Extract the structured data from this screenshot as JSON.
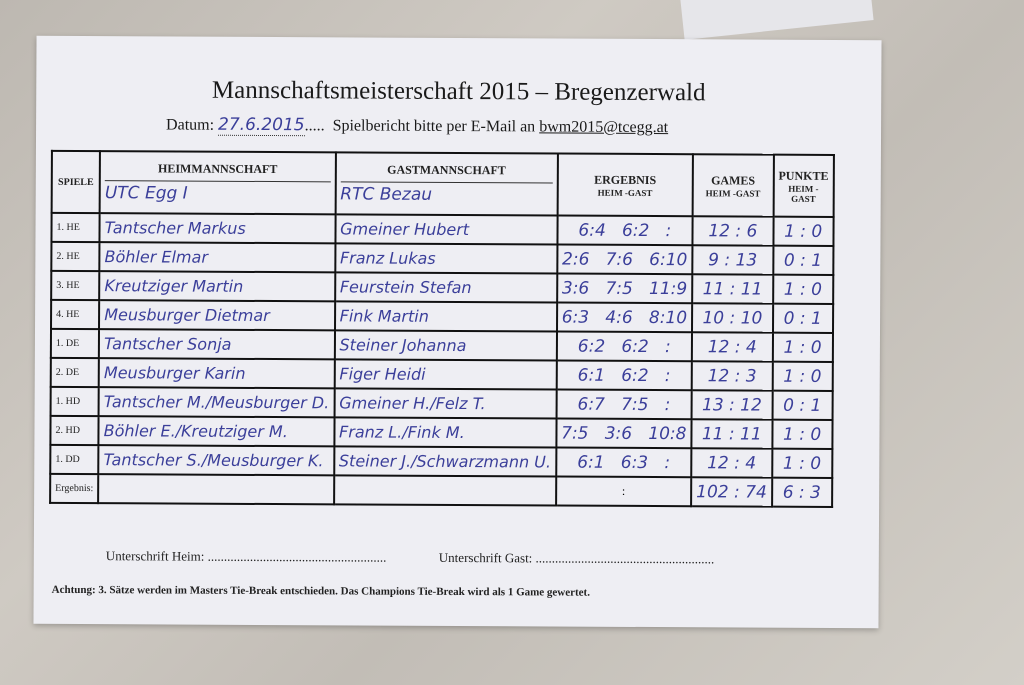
{
  "title": "Mannschaftsmeisterschaft 2015 – Bregenzerwald",
  "datum_label": "Datum:",
  "datum_value": "27.6.2015",
  "datum_dots": ".....",
  "email_text": "Spielbericht bitte per E-Mail an",
  "email": "bwm2015@tcegg.at",
  "headers": {
    "spiele": "SPIELE",
    "heim": "HEIMMANNSCHAFT",
    "gast": "GASTMANNSCHAFT",
    "ergebnis": "ERGEBNIS",
    "ergebnis_sub": "HEIM -GAST",
    "games": "GAMES",
    "games_sub": "HEIM -GAST",
    "punkte": "PUNKTE",
    "punkte_sub": "HEIM -GAST"
  },
  "home_team": "UTC Egg I",
  "guest_team": "RTC Bezau",
  "rows": [
    {
      "spiel": "1. HE",
      "heim": "Tantscher Markus",
      "gast": "Gmeiner Hubert",
      "ergebnis": "6:4   6:2   :",
      "games": "12 : 6",
      "punkte": "1 : 0"
    },
    {
      "spiel": "2. HE",
      "heim": "Böhler Elmar",
      "gast": "Franz Lukas",
      "ergebnis": "2:6   7:6   6:10",
      "games": "9 : 13",
      "punkte": "0 : 1"
    },
    {
      "spiel": "3. HE",
      "heim": "Kreutziger Martin",
      "gast": "Feurstein Stefan",
      "ergebnis": "3:6   7:5   11:9",
      "games": "11 : 11",
      "punkte": "1 : 0"
    },
    {
      "spiel": "4. HE",
      "heim": "Meusburger Dietmar",
      "gast": "Fink Martin",
      "ergebnis": "6:3   4:6   8:10",
      "games": "10 : 10",
      "punkte": "0 : 1"
    },
    {
      "spiel": "1. DE",
      "heim": "Tantscher Sonja",
      "gast": "Steiner Johanna",
      "ergebnis": "6:2   6:2   :",
      "games": "12 : 4",
      "punkte": "1 : 0"
    },
    {
      "spiel": "2. DE",
      "heim": "Meusburger Karin",
      "gast": "Figer Heidi",
      "ergebnis": "6:1   6:2   :",
      "games": "12 : 3",
      "punkte": "1 : 0"
    },
    {
      "spiel": "1. HD",
      "heim": "Tantscher M./Meusburger D.",
      "gast": "Gmeiner H./Felz T.",
      "ergebnis": "6:7   7:5   :",
      "games": "13 : 12",
      "punkte": "0 : 1"
    },
    {
      "spiel": "2. HD",
      "heim": "Böhler E./Kreutziger M.",
      "gast": "Franz L./Fink M.",
      "ergebnis": "7:5   3:6   10:8",
      "games": "11 : 11",
      "punkte": "1 : 0"
    },
    {
      "spiel": "1. DD",
      "heim": "Tantscher S./Meusburger K.",
      "gast": "Steiner J./Schwarzmann U.",
      "ergebnis": "6:1   6:3   :",
      "games": "12 : 4",
      "punkte": "1 : 0"
    }
  ],
  "total": {
    "label": "Ergebnis:",
    "ergebnis": ":",
    "games": "102 : 74",
    "punkte": "6 : 3"
  },
  "sig_heim": "Unterschrift  Heim: .......................................................",
  "sig_gast": "Unterschrift  Gast: .......................................................",
  "note": "Achtung: 3. Sätze werden im Masters Tie-Break entschieden. Das Champions Tie-Break wird als 1 Game gewertet."
}
